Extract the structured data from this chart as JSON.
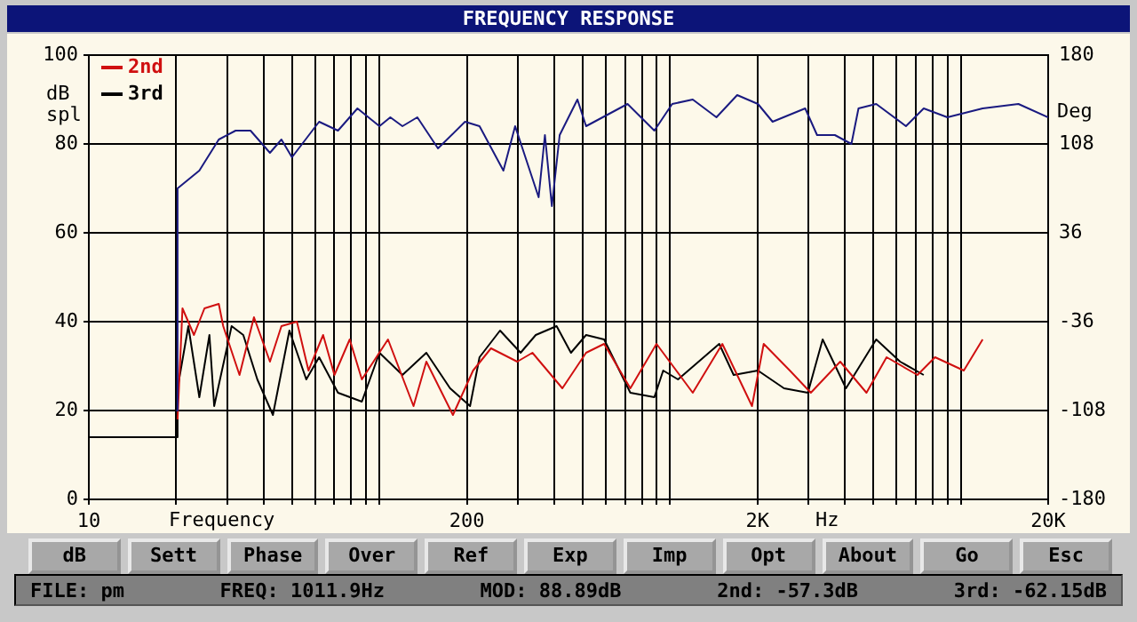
{
  "chart_data": {
    "type": "line",
    "title": "FREQUENCY RESPONSE",
    "xlabel": "Frequency",
    "ylabel": "dB spl",
    "y2label": "Deg",
    "log": "x",
    "grid": true,
    "legend": "top left",
    "marker": "none",
    "line_style": "solid",
    "xlim": [
      10,
      20000
    ],
    "xticks": [
      {
        "value": 10,
        "label": "10"
      },
      {
        "value": 20,
        "label": null
      },
      {
        "value": 30,
        "label": null
      },
      {
        "value": 40,
        "label": null
      },
      {
        "value": 50,
        "label": null
      },
      {
        "value": 60,
        "label": null
      },
      {
        "value": 70,
        "label": null
      },
      {
        "value": 80,
        "label": null
      },
      {
        "value": 90,
        "label": null
      },
      {
        "value": 100,
        "label": null
      },
      {
        "value": 200,
        "label": "200"
      },
      {
        "value": 300,
        "label": null
      },
      {
        "value": 400,
        "label": null
      },
      {
        "value": 500,
        "label": null
      },
      {
        "value": 600,
        "label": null
      },
      {
        "value": 700,
        "label": null
      },
      {
        "value": 800,
        "label": null
      },
      {
        "value": 900,
        "label": null
      },
      {
        "value": 1000,
        "label": null
      },
      {
        "value": 2000,
        "label": "2K"
      },
      {
        "value": 3000,
        "label": null
      },
      {
        "value": 4000,
        "label": null
      },
      {
        "value": 5000,
        "label": null
      },
      {
        "value": 6000,
        "label": null
      },
      {
        "value": 7000,
        "label": null
      },
      {
        "value": 8000,
        "label": null
      },
      {
        "value": 9000,
        "label": null
      },
      {
        "value": 10000,
        "label": null
      },
      {
        "value": 20000,
        "label": "20K"
      }
    ],
    "ylim": [
      0,
      100
    ],
    "yticks": [
      0,
      20,
      40,
      60,
      80,
      100
    ],
    "y2lim": [
      -180,
      180
    ],
    "y2ticks": [
      -180,
      -108,
      -36,
      36,
      108,
      180
    ],
    "series": [
      {
        "color": "#1a1a80",
        "x": [
          20,
          20.2,
          24,
          28,
          32,
          36,
          42,
          46,
          50,
          62,
          72,
          84,
          100,
          109,
          120,
          135,
          159,
          197,
          221,
          267,
          293,
          353,
          371,
          392,
          417,
          480,
          514,
          714,
          883,
          1017,
          1197,
          1444,
          1702,
          2006,
          2253,
          2917,
          3205,
          3690,
          4207,
          4450,
          5120,
          6480,
          7460,
          9000,
          11900,
          15800,
          20000
        ],
        "values": [
          20,
          70,
          74,
          81,
          83,
          83,
          78,
          81,
          77,
          85,
          83,
          88,
          84,
          86,
          84,
          86,
          79,
          85,
          84,
          74,
          84,
          68,
          82,
          66,
          82,
          90,
          84,
          89,
          83,
          89,
          90,
          86,
          91,
          89,
          85,
          88,
          82,
          82,
          80,
          88,
          89,
          84,
          88,
          86,
          88,
          89,
          86
        ]
      },
      {
        "name": "2nd",
        "color": "#d01010",
        "x": [
          20.2,
          21,
          23,
          25,
          28,
          29,
          33,
          37,
          42,
          46,
          52,
          57,
          64,
          70,
          79,
          87,
          107,
          131,
          145,
          179,
          210,
          242,
          298,
          336,
          426,
          514,
          593,
          730,
          898,
          1197,
          1513,
          1914,
          2100,
          2583,
          3050,
          3850,
          4740,
          5560,
          7100,
          8160,
          10250,
          11900
        ],
        "values": [
          18,
          43,
          37,
          43,
          44,
          39,
          28,
          41,
          31,
          39,
          40,
          29,
          37,
          28,
          36,
          27,
          36,
          21,
          31,
          19,
          29,
          34,
          31,
          33,
          25,
          33,
          35,
          25,
          35,
          24,
          35,
          21,
          35,
          29,
          24,
          31,
          24,
          32,
          28,
          32,
          29,
          36
        ]
      },
      {
        "name": "3rd",
        "color": "#000000",
        "x": [
          10,
          20,
          20.2,
          22,
          24,
          26,
          27,
          31,
          34,
          38,
          43,
          49,
          56,
          62,
          72,
          87,
          100,
          120,
          145,
          175,
          205,
          221,
          260,
          306,
          345,
          407,
          456,
          514,
          593,
          730,
          883,
          947,
          1065,
          1476,
          1655,
          2006,
          2467,
          2980,
          3350,
          4030,
          5120,
          6190,
          7460
        ],
        "values": [
          14,
          14,
          25,
          39,
          23,
          37,
          21,
          39,
          37,
          27,
          19,
          38,
          27,
          32,
          24,
          22,
          33,
          28,
          33,
          25,
          21,
          32,
          38,
          33,
          37,
          39,
          33,
          37,
          36,
          24,
          23,
          29,
          27,
          35,
          28,
          29,
          25,
          24,
          36,
          25,
          36,
          31,
          28
        ]
      }
    ],
    "annotations": [
      "Hz",
      "dB",
      "Sett",
      "Phase",
      "Over",
      "Ref",
      "Exp",
      "Imp",
      "Opt",
      "About",
      "Go",
      "Esc",
      "FILE: pm",
      "FREQ: 1011.9Hz",
      "MOD: 88.89dB",
      "2nd: -57.3dB",
      "3rd: -62.15dB"
    ]
  }
}
